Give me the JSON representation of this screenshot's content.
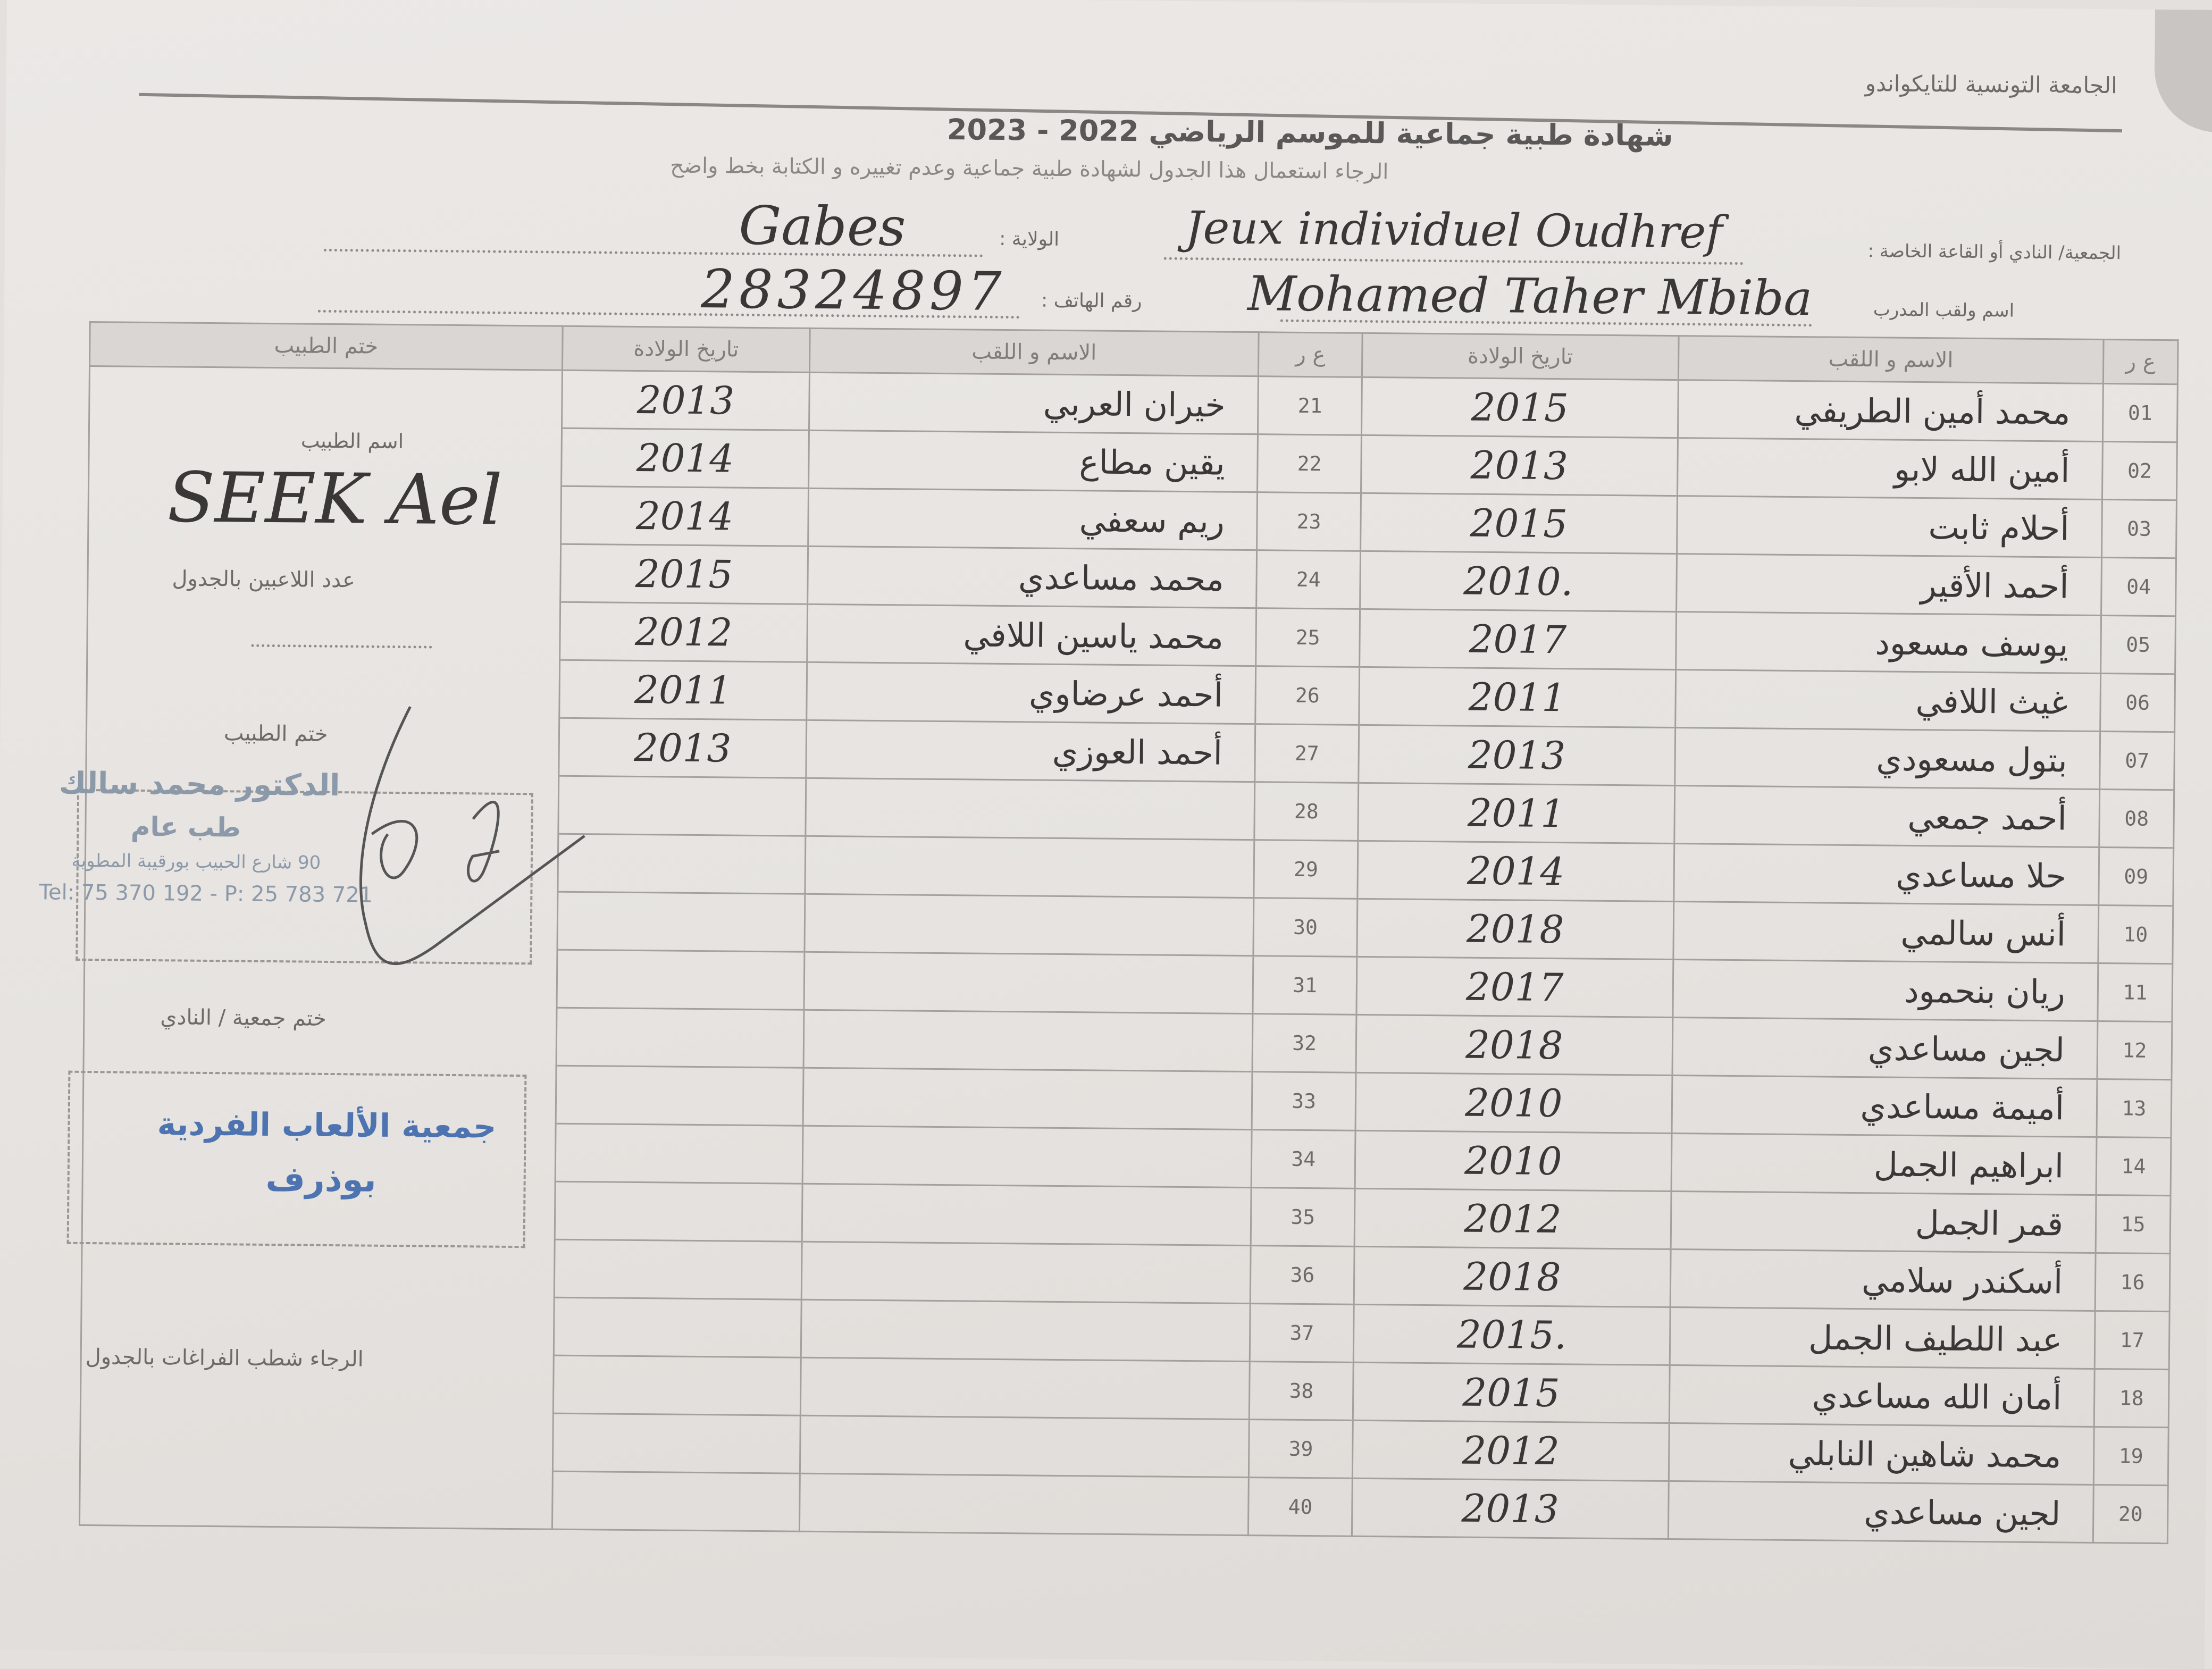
{
  "header": {
    "federation": "الجامعة التونسية للتايكواندو",
    "title": "شهادة طبية جماعية للموسم الرياضي 2022 - 2023",
    "instruction": "الرجاء استعمال هذا الجدول لشهادة طبية جماعية وعدم تغييره و الكتابة بخط واضح"
  },
  "fields": {
    "club_label": "الجمعية/ النادي أو القاعة الخاصة :",
    "club_value": "Jeux individuel Oudhref",
    "coach_label": "اسم ولقب المدرب",
    "coach_value": "Mohamed Taher Mbiba",
    "governorate_label": "الولاية :",
    "governorate_value": "Gabes",
    "phone_label": "رقم الهاتف :",
    "phone_value": "28324897"
  },
  "table": {
    "headers": {
      "number": "ع ر",
      "name": "الاسم و اللقب",
      "dob": "تاريخ الولادة",
      "stamp": "ختم الطبيب"
    },
    "rows_right": [
      {
        "num": "01",
        "name": "محمد أمين الطريفي",
        "dob": "2015"
      },
      {
        "num": "02",
        "name": "أمين الله لابو",
        "dob": "2013"
      },
      {
        "num": "03",
        "name": "أحلام ثابت",
        "dob": "2015"
      },
      {
        "num": "04",
        "name": "أحمد الأقير",
        "dob": "2010."
      },
      {
        "num": "05",
        "name": "يوسف مسعود",
        "dob": "2017"
      },
      {
        "num": "06",
        "name": "غيث اللافي",
        "dob": "2011"
      },
      {
        "num": "07",
        "name": "بتول مسعودي",
        "dob": "2013"
      },
      {
        "num": "08",
        "name": "أحمد جمعي",
        "dob": "2011"
      },
      {
        "num": "09",
        "name": "حلا مساعدي",
        "dob": "2014"
      },
      {
        "num": "10",
        "name": "أنس سالمي",
        "dob": "2018"
      },
      {
        "num": "11",
        "name": "ريان بنحمود",
        "dob": "2017"
      },
      {
        "num": "12",
        "name": "لجين مساعدي",
        "dob": "2018"
      },
      {
        "num": "13",
        "name": "أميمة مساعدي",
        "dob": "2010"
      },
      {
        "num": "14",
        "name": "ابراهيم الجمل",
        "dob": "2010"
      },
      {
        "num": "15",
        "name": "قمر الجمل",
        "dob": "2012"
      },
      {
        "num": "16",
        "name": "أسكندر سلامي",
        "dob": "2018"
      },
      {
        "num": "17",
        "name": "عبد اللطيف الجمل",
        "dob": "2015."
      },
      {
        "num": "18",
        "name": "أمان الله مساعدي",
        "dob": "2015"
      },
      {
        "num": "19",
        "name": "محمد شاهين النابلي",
        "dob": "2012"
      },
      {
        "num": "20",
        "name": "لجين مساعدي",
        "dob": "2013"
      }
    ],
    "rows_left": [
      {
        "num": "21",
        "name": "خيران العربي",
        "dob": "2013"
      },
      {
        "num": "22",
        "name": "يقين مطاع",
        "dob": "2014"
      },
      {
        "num": "23",
        "name": "ريم سعفي",
        "dob": "2014"
      },
      {
        "num": "24",
        "name": "محمد مساعدي",
        "dob": "2015"
      },
      {
        "num": "25",
        "name": "محمد ياسين اللافي",
        "dob": "2012"
      },
      {
        "num": "26",
        "name": "أحمد عرضاوي",
        "dob": "2011"
      },
      {
        "num": "27",
        "name": "أحمد العوزي",
        "dob": "2013"
      },
      {
        "num": "28",
        "name": "",
        "dob": ""
      },
      {
        "num": "29",
        "name": "",
        "dob": ""
      },
      {
        "num": "30",
        "name": "",
        "dob": ""
      },
      {
        "num": "31",
        "name": "",
        "dob": ""
      },
      {
        "num": "32",
        "name": "",
        "dob": ""
      },
      {
        "num": "33",
        "name": "",
        "dob": ""
      },
      {
        "num": "34",
        "name": "",
        "dob": ""
      },
      {
        "num": "35",
        "name": "",
        "dob": ""
      },
      {
        "num": "36",
        "name": "",
        "dob": ""
      },
      {
        "num": "37",
        "name": "",
        "dob": ""
      },
      {
        "num": "38",
        "name": "",
        "dob": ""
      },
      {
        "num": "39",
        "name": "",
        "dob": ""
      },
      {
        "num": "40",
        "name": "",
        "dob": ""
      }
    ]
  },
  "side": {
    "doctor_name_label": "اسم الطبيب",
    "doctor_name_value": "SEEK Ael",
    "player_count_label": "عدد اللاعبين بالجدول",
    "doctor_stamp_label": "ختم الطبيب",
    "doctor_stamp": {
      "name": "الدكتور محمد سالك",
      "specialty": "طب عام",
      "address": "90 شارع الحبيب بورقيبة المطوية",
      "phones": "Tel: 75 370 192 - P: 25 783 721"
    },
    "club_stamp_label": "ختم جمعية / النادي",
    "club_stamp": {
      "line1": "جمعية الألعاب الفردية",
      "line2": "بوذرف"
    },
    "footer_note": "الرجاء شطب الفراغات بالجدول"
  },
  "colors": {
    "paper": "#e9e6e3",
    "print": "#6d6a68",
    "ink": "#3a3837",
    "club_stamp": "#4d74b0",
    "doctor_stamp": "#8b99a8"
  }
}
